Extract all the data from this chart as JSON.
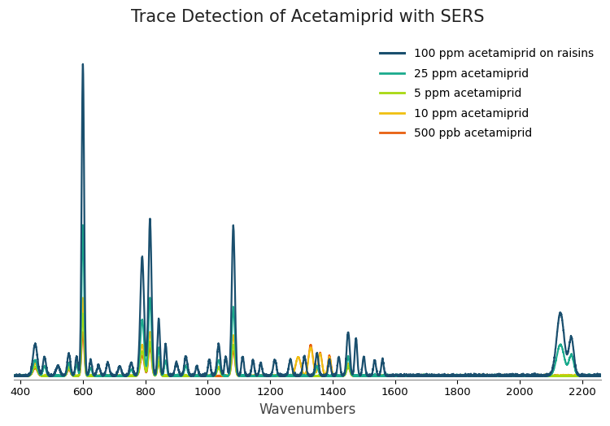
{
  "title": "Trace Detection of Acetamiprid with SERS",
  "xlabel": "Wavenumbers",
  "xlim": [
    380,
    2260
  ],
  "background_color": "#ffffff",
  "legend_entries": [
    "100 ppm acetamiprid on raisins",
    "25 ppm acetamiprid",
    "5 ppm acetamiprid",
    "10 ppm acetamiprid",
    "500 ppb acetamiprid"
  ],
  "colors": {
    "100ppm_raisins": "#1a4f6e",
    "25ppm": "#1aaa8c",
    "5ppm": "#a8d810",
    "10ppm": "#f0c010",
    "500ppb": "#e86010"
  },
  "lw": {
    "100ppm_raisins": 1.6,
    "25ppm": 1.5,
    "5ppm": 1.4,
    "10ppm": 1.4,
    "500ppb": 1.4
  }
}
